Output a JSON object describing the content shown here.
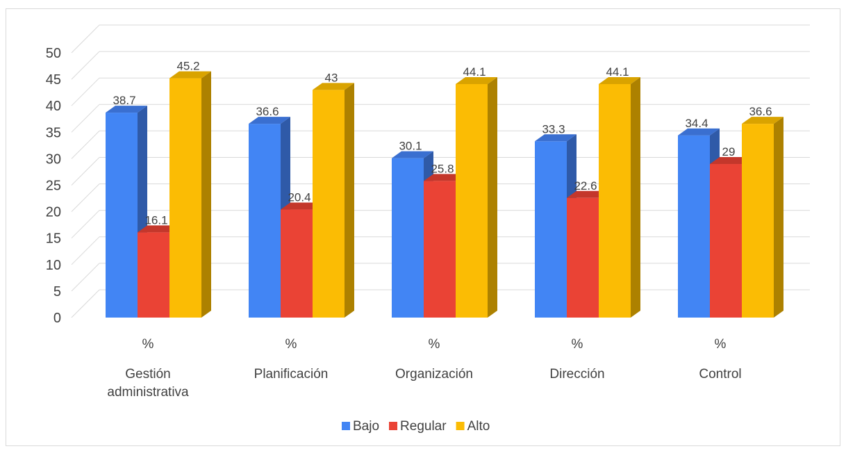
{
  "chart_data": {
    "type": "bar",
    "categories": [
      {
        "pct": "%",
        "lines": [
          "Gestión",
          "administrativa"
        ]
      },
      {
        "pct": "%",
        "lines": [
          "Planificación"
        ]
      },
      {
        "pct": "%",
        "lines": [
          "Organización"
        ]
      },
      {
        "pct": "%",
        "lines": [
          "Dirección"
        ]
      },
      {
        "pct": "%",
        "lines": [
          "Control"
        ]
      }
    ],
    "series": [
      {
        "name": "Bajo",
        "color": "#4285f4",
        "side_color": "#2f5aa8",
        "top_color": "#3a6fd0",
        "values": [
          38.7,
          36.6,
          30.1,
          33.3,
          34.4
        ],
        "labels": [
          "38.7",
          "36.6",
          "30.1",
          "33.3",
          "34.4"
        ]
      },
      {
        "name": "Regular",
        "color": "#ea4335",
        "side_color": "#a12d24",
        "top_color": "#c4372b",
        "values": [
          16.1,
          20.4,
          25.8,
          22.6,
          29
        ],
        "labels": [
          "16.1",
          "20.4",
          "25.8",
          "22.6",
          "29"
        ]
      },
      {
        "name": "Alto",
        "color": "#fbbc04",
        "side_color": "#ad8100",
        "top_color": "#d9a300",
        "values": [
          45.2,
          43,
          44.1,
          44.1,
          36.6
        ],
        "labels": [
          "45.2",
          "43",
          "44.1",
          "44.1",
          "36.6"
        ]
      }
    ],
    "yticks": [
      "0",
      "5",
      "10",
      "15",
      "20",
      "25",
      "30",
      "35",
      "40",
      "45",
      "50"
    ],
    "ylim": [
      0,
      50
    ],
    "grid": true,
    "legend_position": "bottom"
  }
}
